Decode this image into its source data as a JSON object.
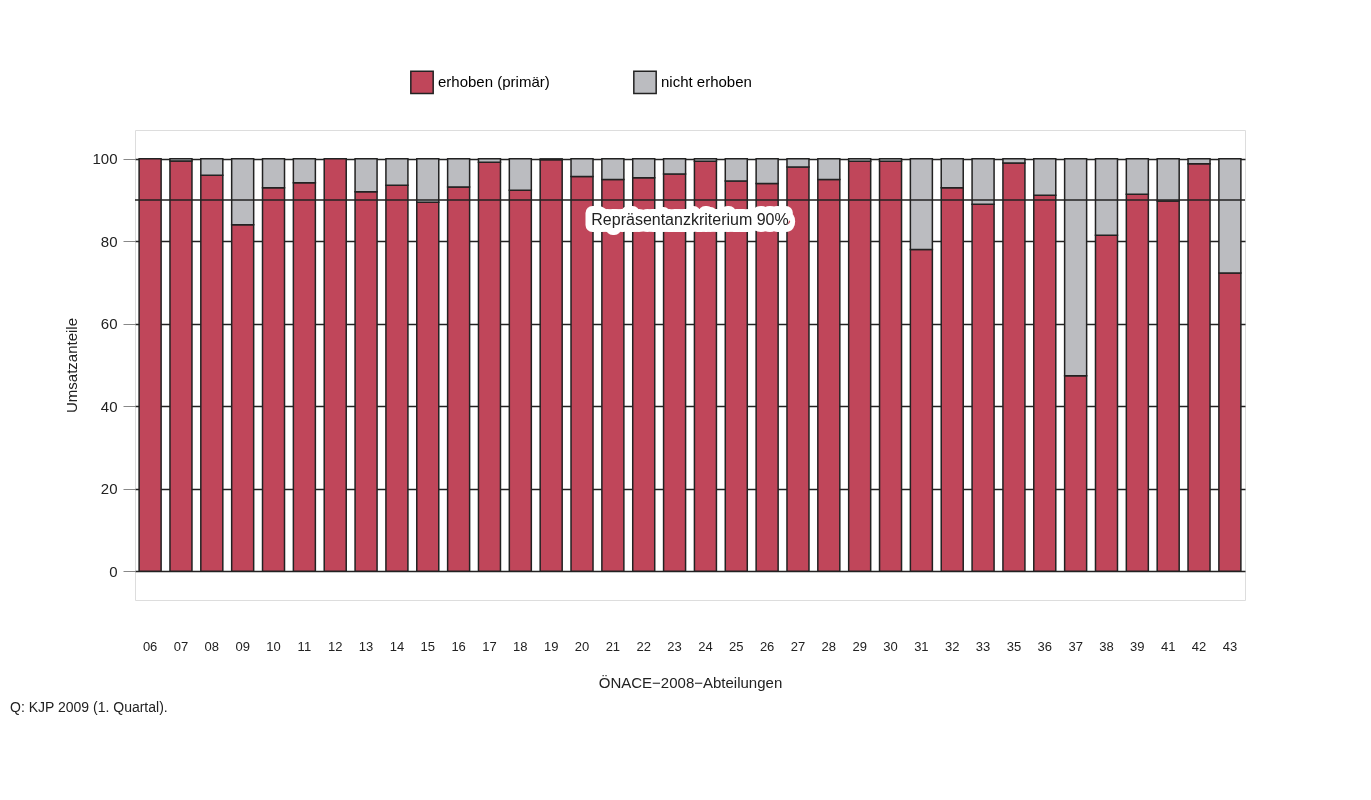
{
  "chart_data": {
    "type": "bar",
    "stacked": true,
    "xlabel": "ÖNACE−2008−Abteilungen",
    "ylabel": "Umsatzanteile",
    "categories": [
      "06",
      "07",
      "08",
      "09",
      "10",
      "11",
      "12",
      "13",
      "14",
      "15",
      "16",
      "17",
      "18",
      "19",
      "20",
      "21",
      "22",
      "23",
      "24",
      "25",
      "26",
      "27",
      "28",
      "29",
      "30",
      "31",
      "32",
      "33",
      "35",
      "36",
      "37",
      "38",
      "39",
      "41",
      "42",
      "43"
    ],
    "series": [
      {
        "name": "erhoben (primär)",
        "color": "#c0465a",
        "values": [
          100,
          99.5,
          96,
          84,
          93,
          94.2,
          100,
          92,
          93.6,
          89.5,
          93.2,
          99.2,
          92.4,
          99.8,
          95.7,
          95,
          95.4,
          96.3,
          99.4,
          94.6,
          94,
          98,
          95,
          99.4,
          99.4,
          78,
          93,
          89,
          99,
          91.2,
          47.4,
          81.5,
          91.4,
          89.8,
          98.8,
          72.3
        ]
      },
      {
        "name": "nicht erhoben",
        "color": "#bbbcc0",
        "values": [
          0,
          0.5,
          4,
          16,
          7,
          5.8,
          0,
          8,
          6.4,
          10.5,
          6.8,
          0.8,
          7.6,
          0.2,
          4.3,
          5,
          4.6,
          3.7,
          0.6,
          5.4,
          6,
          2,
          5,
          0.6,
          0.6,
          22,
          7,
          11,
          1,
          8.8,
          52.6,
          18.5,
          8.6,
          10.2,
          1.2,
          27.7
        ]
      }
    ],
    "ylim": [
      -7,
      107
    ],
    "yticks": [
      0,
      20,
      40,
      60,
      80,
      100
    ],
    "grid": "y",
    "legend": "top",
    "ref_lines": [
      {
        "axis": "y",
        "value": 90,
        "label": "Repräsentanzkriterium 90%"
      }
    ],
    "annotations": [
      "Q: KJP 2009 (1. Quartal)."
    ]
  }
}
